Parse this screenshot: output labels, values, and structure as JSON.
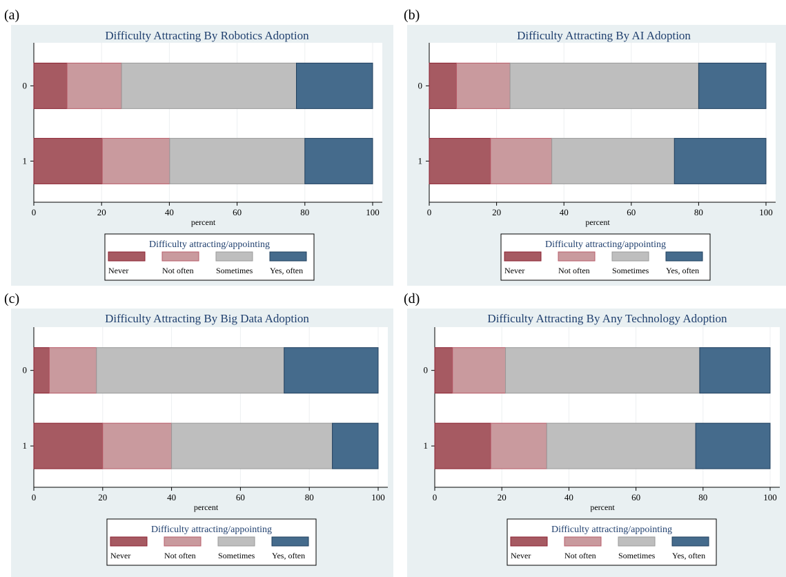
{
  "figure": {
    "panel_letters": [
      "(a)",
      "(b)",
      "(c)",
      "(d)"
    ]
  },
  "colors": {
    "panel_background": "#e9f0f2",
    "plot_background": "#ffffff",
    "title_color": "#1f3f6e",
    "gridline": "#eceff1",
    "series": [
      "#a65a62",
      "#c99a9e",
      "#bebebe",
      "#456b8c"
    ],
    "series_stroke": [
      "#8c2232",
      "#b85c69",
      "#9a9a9a",
      "#1f3f5e"
    ]
  },
  "chart_data": [
    {
      "type": "bar",
      "orientation": "horizontal",
      "stacked": true,
      "title": "Difficulty Attracting By Robotics Adoption",
      "categories": [
        "0",
        "1"
      ],
      "xlabel": "percent",
      "xlim": [
        0,
        100
      ],
      "xticks": [
        0,
        20,
        40,
        60,
        80,
        100
      ],
      "legend_title": "Difficulty attracting/appointing",
      "legend_position": "bottom",
      "series": [
        {
          "name": "Never",
          "values": [
            9.8,
            20.2
          ]
        },
        {
          "name": "Not often",
          "values": [
            16.1,
            19.9
          ]
        },
        {
          "name": "Sometimes",
          "values": [
            51.6,
            39.9
          ]
        },
        {
          "name": "Yes, often",
          "values": [
            22.5,
            20.0
          ]
        }
      ]
    },
    {
      "type": "bar",
      "orientation": "horizontal",
      "stacked": true,
      "title": "Difficulty Attracting By AI Adoption",
      "categories": [
        "0",
        "1"
      ],
      "xlabel": "percent",
      "xlim": [
        0,
        100
      ],
      "xticks": [
        0,
        20,
        40,
        60,
        80,
        100
      ],
      "legend_title": "Difficulty attracting/appointing",
      "legend_position": "bottom",
      "series": [
        {
          "name": "Never",
          "values": [
            8.1,
            18.2
          ]
        },
        {
          "name": "Not often",
          "values": [
            15.9,
            18.2
          ]
        },
        {
          "name": "Sometimes",
          "values": [
            56.0,
            36.4
          ]
        },
        {
          "name": "Yes, often",
          "values": [
            20.0,
            27.2
          ]
        }
      ]
    },
    {
      "type": "bar",
      "orientation": "horizontal",
      "stacked": true,
      "title": "Difficulty Attracting By Big Data Adoption",
      "categories": [
        "0",
        "1"
      ],
      "xlabel": "percent",
      "xlim": [
        0,
        100
      ],
      "xticks": [
        0,
        20,
        40,
        60,
        80,
        100
      ],
      "legend_title": "Difficulty attracting/appointing",
      "legend_position": "bottom",
      "series": [
        {
          "name": "Never",
          "values": [
            4.5,
            20.0
          ]
        },
        {
          "name": "Not often",
          "values": [
            13.7,
            20.0
          ]
        },
        {
          "name": "Sometimes",
          "values": [
            54.5,
            46.7
          ]
        },
        {
          "name": "Yes, often",
          "values": [
            27.3,
            13.3
          ]
        }
      ]
    },
    {
      "type": "bar",
      "orientation": "horizontal",
      "stacked": true,
      "title": "Difficulty Attracting By Any Technology Adoption",
      "categories": [
        "0",
        "1"
      ],
      "xlabel": "percent",
      "xlim": [
        0,
        100
      ],
      "xticks": [
        0,
        20,
        40,
        60,
        80,
        100
      ],
      "legend_title": "Difficulty attracting/appointing",
      "legend_position": "bottom",
      "series": [
        {
          "name": "Never",
          "values": [
            5.3,
            16.7
          ]
        },
        {
          "name": "Not often",
          "values": [
            15.8,
            16.7
          ]
        },
        {
          "name": "Sometimes",
          "values": [
            57.9,
            44.4
          ]
        },
        {
          "name": "Yes, often",
          "values": [
            21.0,
            22.2
          ]
        }
      ]
    }
  ]
}
